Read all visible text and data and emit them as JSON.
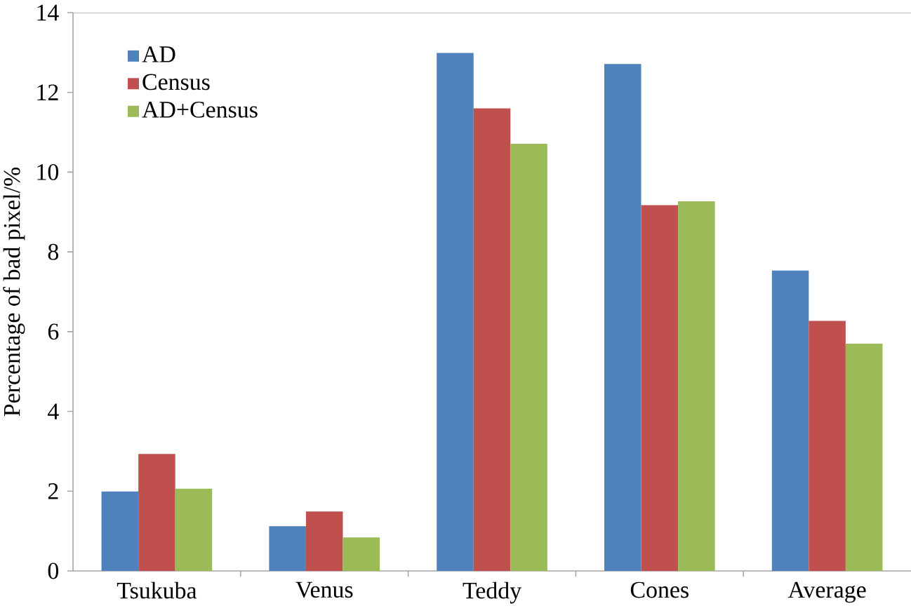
{
  "chart_data": {
    "type": "bar",
    "ylabel": "Percentage of bad pixel/%",
    "categories": [
      "Tsukuba",
      "Venus",
      "Teddy",
      "Cones",
      "Average"
    ],
    "series": [
      {
        "name": "AD",
        "color": "#4f81bd",
        "values": [
          1.99,
          1.12,
          12.99,
          12.71,
          7.53
        ]
      },
      {
        "name": "Census",
        "color": "#c0504d",
        "values": [
          2.93,
          1.49,
          11.6,
          9.17,
          6.27
        ]
      },
      {
        "name": "AD+Census",
        "color": "#9bbb59",
        "values": [
          2.06,
          0.84,
          10.71,
          9.27,
          5.7
        ]
      }
    ],
    "ylim": [
      0,
      14
    ],
    "yticks": [
      0,
      2,
      4,
      6,
      8,
      10,
      12,
      14
    ],
    "grid": false,
    "legend": "top left"
  }
}
